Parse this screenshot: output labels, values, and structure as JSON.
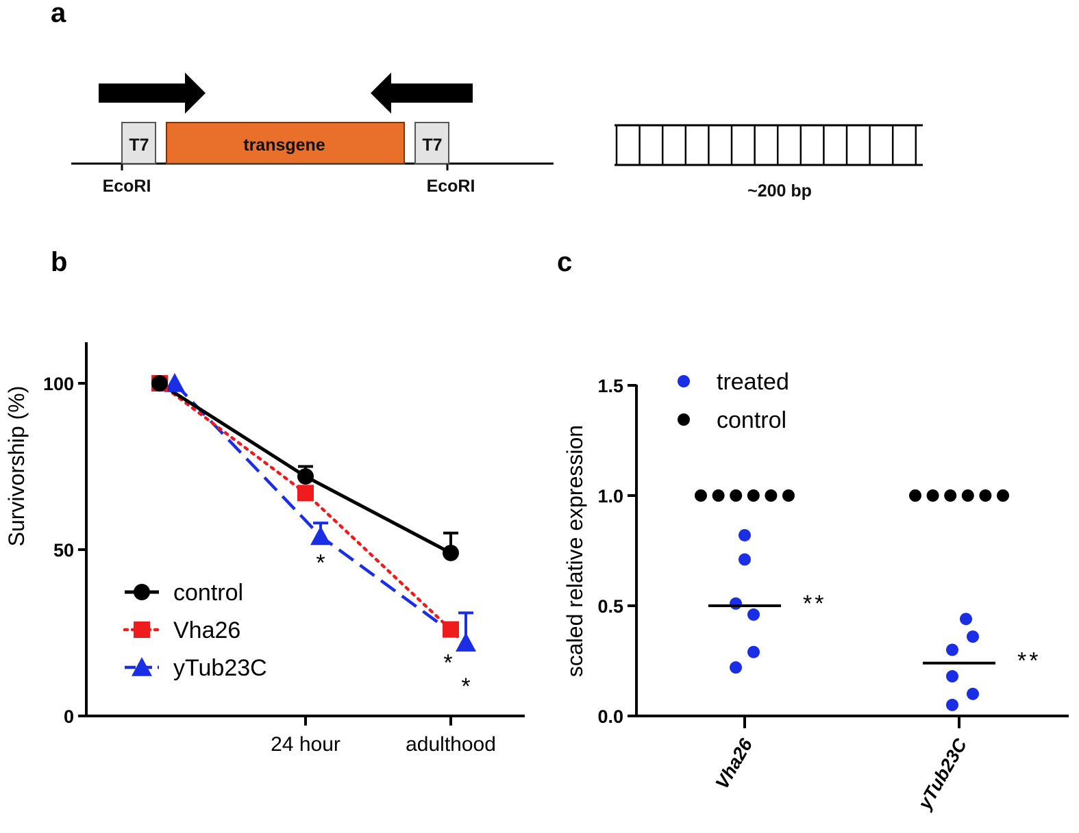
{
  "panels": {
    "a": "a",
    "b": "b",
    "c": "c"
  },
  "schematic": {
    "t7_left": "T7",
    "transgene": "transgene",
    "t7_right": "T7",
    "ecori_left": "EcoRI",
    "ecori_right": "EcoRI",
    "dsrna_length": "~200 bp",
    "transgene_color": "#e8702a",
    "t7_box_color": "#e3e3e3"
  },
  "chart_data": [
    {
      "panel": "b",
      "type": "line",
      "ylabel": "Survivorship (%)",
      "xlabel": "",
      "ylim": [
        0,
        110
      ],
      "yticks": [
        "0",
        "50",
        "100"
      ],
      "x_tick_labels": [
        "24 hour",
        "adulthood"
      ],
      "legend_position": "bottom-left",
      "series": [
        {
          "name": "control",
          "color": "#000000",
          "marker": "circle",
          "line": "solid",
          "values": [
            100,
            72,
            49
          ],
          "error_upper": [
            null,
            75,
            55
          ],
          "significance": [
            "",
            "",
            ""
          ]
        },
        {
          "name": "Vha26",
          "color": "#ee1c1c",
          "marker": "square",
          "line": "dotted",
          "values": [
            100,
            67,
            26
          ],
          "error_upper": [
            null,
            null,
            null
          ],
          "significance": [
            "",
            "",
            "*"
          ]
        },
        {
          "name": "yTub23C",
          "color": "#1a2ee6",
          "marker": "triangle",
          "line": "dashed",
          "values": [
            100,
            54,
            22
          ],
          "error_upper": [
            null,
            58,
            31
          ],
          "significance": [
            "",
            "*",
            "*"
          ]
        }
      ]
    },
    {
      "panel": "c",
      "type": "scatter",
      "ylabel": "scaled relative expression",
      "xlabel": "",
      "ylim": [
        0,
        1.5
      ],
      "yticks": [
        "0.0",
        "0.5",
        "1.0",
        "1.5"
      ],
      "categories": [
        "Vha26",
        "yTub23C"
      ],
      "legend_position": "top-left",
      "series": [
        {
          "name": "treated",
          "color": "#1a2ee6",
          "points": [
            {
              "category": "Vha26",
              "values": [
                0.82,
                0.71,
                0.51,
                0.46,
                0.29,
                0.22
              ]
            },
            {
              "category": "yTub23C",
              "values": [
                0.44,
                0.36,
                0.3,
                0.18,
                0.1,
                0.05
              ]
            }
          ]
        },
        {
          "name": "control",
          "color": "#000000",
          "points": [
            {
              "category": "Vha26",
              "values": [
                1.0,
                1.0,
                1.0,
                1.0,
                1.0,
                1.0
              ]
            },
            {
              "category": "yTub23C",
              "values": [
                1.0,
                1.0,
                1.0,
                1.0,
                1.0,
                1.0
              ]
            }
          ]
        }
      ],
      "medians": [
        {
          "category": "Vha26",
          "value": 0.5
        },
        {
          "category": "yTub23C",
          "value": 0.24
        }
      ],
      "significance": [
        {
          "category": "Vha26",
          "label": "**"
        },
        {
          "category": "yTub23C",
          "label": "**"
        }
      ]
    }
  ]
}
